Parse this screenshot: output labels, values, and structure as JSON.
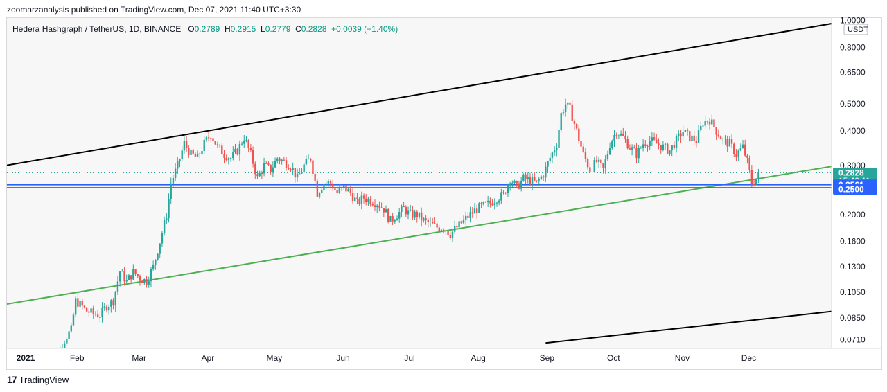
{
  "header": {
    "published_line": "zoomarzanalysis published on TradingView.com, Dec 07, 2021 11:40 UTC+3:30"
  },
  "legend": {
    "symbol": "Hedera Hashgraph / TetherUS, 1D, BINANCE",
    "open_label": "O",
    "open": "0.2789",
    "high_label": "H",
    "high": "0.2915",
    "low_label": "L",
    "low": "0.2779",
    "close_label": "C",
    "close": "0.2828",
    "change": "+0.0039 (+1.40%)"
  },
  "footer": {
    "brand_mark": "17",
    "brand": "TradingView"
  },
  "colors": {
    "up": "#26a69a",
    "down": "#ef5350",
    "channel_line": "#000000",
    "support_line": "#4caf50",
    "horizontal_level": "#2962ff",
    "price_badge": "#26a69a",
    "level_badge": "#2962ff"
  },
  "chart_data": {
    "type": "candlestick",
    "scale": "log",
    "x": [
      "2021-01-01",
      "2021-02-01",
      "2021-03-01",
      "2021-04-01",
      "2021-05-01",
      "2021-06-01",
      "2021-07-01",
      "2021-08-01",
      "2021-09-01",
      "2021-10-01",
      "2021-11-01",
      "2021-12-01"
    ],
    "x_tick_labels": [
      "2021",
      "Feb",
      "Mar",
      "Apr",
      "May",
      "Jun",
      "Jul",
      "Aug",
      "Sep",
      "Oct",
      "Nov",
      "Dec"
    ],
    "y_tick_labels": [
      "1.0000",
      "0.8000",
      "0.6500",
      "0.5000",
      "0.4000",
      "0.3000",
      "0.2000",
      "0.1600",
      "0.1300",
      "0.1050",
      "0.0850",
      "0.0710"
    ],
    "y_unit": "USDT",
    "ylim": [
      0.066,
      1.02
    ],
    "grid": false,
    "series_close": [
      [
        "2021-01-19",
        0.058
      ],
      [
        "2021-01-22",
        0.061
      ],
      [
        "2021-01-25",
        0.065
      ],
      [
        "2021-01-27",
        0.071
      ],
      [
        "2021-01-30",
        0.077
      ],
      [
        "2021-02-01",
        0.098
      ],
      [
        "2021-02-03",
        0.095
      ],
      [
        "2021-02-06",
        0.09
      ],
      [
        "2021-02-09",
        0.088
      ],
      [
        "2021-02-12",
        0.087
      ],
      [
        "2021-02-15",
        0.094
      ],
      [
        "2021-02-18",
        0.098
      ],
      [
        "2021-02-21",
        0.125
      ],
      [
        "2021-02-24",
        0.115
      ],
      [
        "2021-02-27",
        0.124
      ],
      [
        "2021-03-02",
        0.118
      ],
      [
        "2021-03-05",
        0.115
      ],
      [
        "2021-03-08",
        0.13
      ],
      [
        "2021-03-11",
        0.16
      ],
      [
        "2021-03-14",
        0.2
      ],
      [
        "2021-03-16",
        0.26
      ],
      [
        "2021-03-19",
        0.3
      ],
      [
        "2021-03-22",
        0.36
      ],
      [
        "2021-03-25",
        0.33
      ],
      [
        "2021-03-28",
        0.32
      ],
      [
        "2021-03-31",
        0.36
      ],
      [
        "2021-04-03",
        0.39
      ],
      [
        "2021-04-06",
        0.35
      ],
      [
        "2021-04-09",
        0.33
      ],
      [
        "2021-04-12",
        0.32
      ],
      [
        "2021-04-15",
        0.34
      ],
      [
        "2021-04-18",
        0.38
      ],
      [
        "2021-04-21",
        0.33
      ],
      [
        "2021-04-24",
        0.27
      ],
      [
        "2021-04-27",
        0.3
      ],
      [
        "2021-04-30",
        0.29
      ],
      [
        "2021-05-03",
        0.32
      ],
      [
        "2021-05-06",
        0.31
      ],
      [
        "2021-05-09",
        0.3
      ],
      [
        "2021-05-12",
        0.27
      ],
      [
        "2021-05-15",
        0.3
      ],
      [
        "2021-05-18",
        0.32
      ],
      [
        "2021-05-21",
        0.24
      ],
      [
        "2021-05-24",
        0.26
      ],
      [
        "2021-05-27",
        0.26
      ],
      [
        "2021-05-30",
        0.24
      ],
      [
        "2021-06-02",
        0.25
      ],
      [
        "2021-06-05",
        0.24
      ],
      [
        "2021-06-08",
        0.22
      ],
      [
        "2021-06-11",
        0.23
      ],
      [
        "2021-06-14",
        0.225
      ],
      [
        "2021-06-17",
        0.22
      ],
      [
        "2021-06-20",
        0.21
      ],
      [
        "2021-06-23",
        0.19
      ],
      [
        "2021-06-26",
        0.2
      ],
      [
        "2021-06-29",
        0.21
      ],
      [
        "2021-07-02",
        0.2
      ],
      [
        "2021-07-05",
        0.2
      ],
      [
        "2021-07-08",
        0.19
      ],
      [
        "2021-07-11",
        0.185
      ],
      [
        "2021-07-14",
        0.18
      ],
      [
        "2021-07-17",
        0.18
      ],
      [
        "2021-07-20",
        0.17
      ],
      [
        "2021-07-23",
        0.18
      ],
      [
        "2021-07-26",
        0.19
      ],
      [
        "2021-07-29",
        0.2
      ],
      [
        "2021-08-01",
        0.21
      ],
      [
        "2021-08-04",
        0.215
      ],
      [
        "2021-08-07",
        0.22
      ],
      [
        "2021-08-10",
        0.23
      ],
      [
        "2021-08-13",
        0.235
      ],
      [
        "2021-08-16",
        0.27
      ],
      [
        "2021-08-19",
        0.25
      ],
      [
        "2021-08-22",
        0.27
      ],
      [
        "2021-08-25",
        0.265
      ],
      [
        "2021-08-28",
        0.26
      ],
      [
        "2021-08-31",
        0.28
      ],
      [
        "2021-09-03",
        0.32
      ],
      [
        "2021-09-06",
        0.36
      ],
      [
        "2021-09-08",
        0.46
      ],
      [
        "2021-09-10",
        0.5
      ],
      [
        "2021-09-12",
        0.48
      ],
      [
        "2021-09-15",
        0.4
      ],
      [
        "2021-09-18",
        0.33
      ],
      [
        "2021-09-21",
        0.29
      ],
      [
        "2021-09-24",
        0.31
      ],
      [
        "2021-09-27",
        0.29
      ],
      [
        "2021-09-30",
        0.36
      ],
      [
        "2021-10-03",
        0.4
      ],
      [
        "2021-10-06",
        0.38
      ],
      [
        "2021-10-09",
        0.35
      ],
      [
        "2021-10-12",
        0.33
      ],
      [
        "2021-10-15",
        0.36
      ],
      [
        "2021-10-18",
        0.37
      ],
      [
        "2021-10-21",
        0.36
      ],
      [
        "2021-10-24",
        0.35
      ],
      [
        "2021-10-27",
        0.34
      ],
      [
        "2021-10-30",
        0.37
      ],
      [
        "2021-11-02",
        0.4
      ],
      [
        "2021-11-05",
        0.38
      ],
      [
        "2021-11-08",
        0.37
      ],
      [
        "2021-11-11",
        0.43
      ],
      [
        "2021-11-14",
        0.44
      ],
      [
        "2021-11-17",
        0.4
      ],
      [
        "2021-11-20",
        0.37
      ],
      [
        "2021-11-23",
        0.36
      ],
      [
        "2021-11-26",
        0.33
      ],
      [
        "2021-11-29",
        0.35
      ],
      [
        "2021-12-01",
        0.31
      ],
      [
        "2021-12-03",
        0.26
      ],
      [
        "2021-12-05",
        0.27
      ],
      [
        "2021-12-07",
        0.2828
      ]
    ],
    "lines": [
      {
        "name": "upper channel",
        "color": "#000000",
        "from": [
          "2020-12-31",
          0.3
        ],
        "to": [
          "2022-01-10",
          0.98
        ]
      },
      {
        "name": "lower channel",
        "color": "#000000",
        "from": [
          "2021-09-01",
          0.069
        ],
        "to": [
          "2022-01-10",
          0.09
        ]
      },
      {
        "name": "support trendline",
        "color": "#4caf50",
        "from": [
          "2020-12-31",
          0.095
        ],
        "to": [
          "2022-01-10",
          0.3
        ]
      },
      {
        "name": "level 0.2561",
        "color": "#2962ff",
        "value": 0.2561
      },
      {
        "name": "level 0.2500",
        "color": "#2962ff",
        "value": 0.25
      }
    ],
    "price_badges": [
      {
        "value": "0.2828",
        "sub": "15:49:11",
        "color": "#26a69a"
      },
      {
        "value": "0.2561",
        "color": "#2962ff"
      },
      {
        "value": "0.2500",
        "color": "#2962ff"
      }
    ]
  }
}
